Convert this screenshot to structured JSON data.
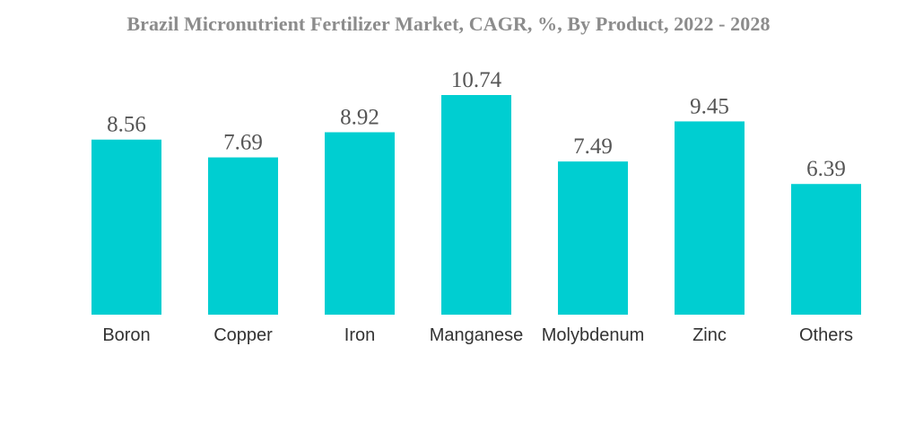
{
  "chart_data": {
    "type": "bar",
    "title": "Brazil Micronutrient Fertilizer Market, CAGR, %, By Product, 2022 - 2028",
    "categories": [
      "Boron",
      "Copper",
      "Iron",
      "Manganese",
      "Molybdenum",
      "Zinc",
      "Others"
    ],
    "values": [
      8.56,
      7.69,
      8.92,
      10.74,
      7.49,
      9.45,
      6.39
    ],
    "xlabel": "",
    "ylabel": "",
    "ylim": [
      0,
      10.74
    ],
    "grid": false,
    "legend": "none",
    "bar_color": "#00CED1"
  }
}
